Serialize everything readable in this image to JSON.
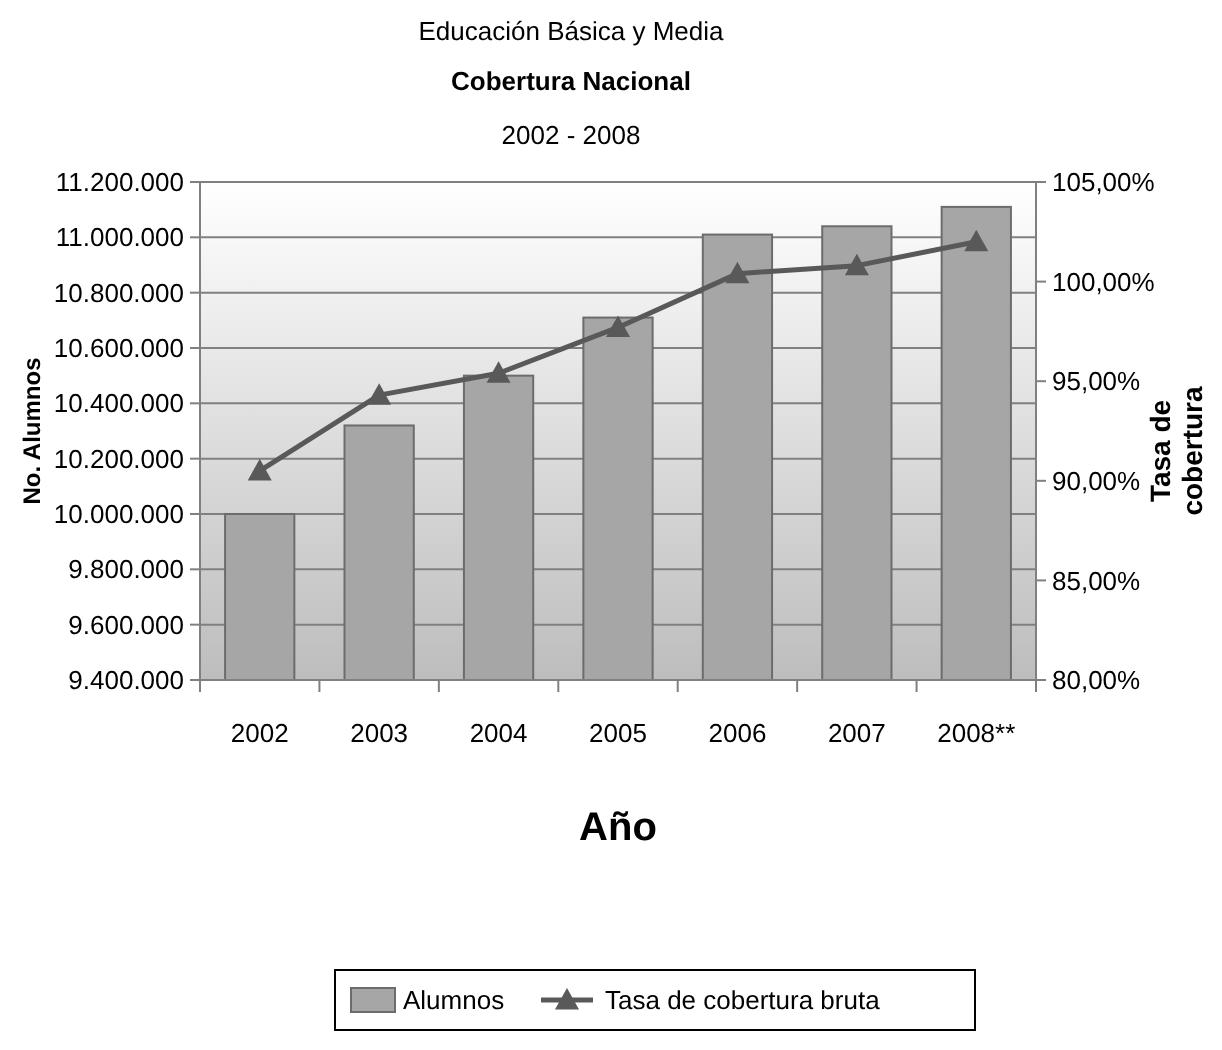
{
  "chart_data": {
    "type": "bar",
    "title": "Educación Básica y Media",
    "subtitle": "Cobertura Nacional",
    "annotations": [
      "2002 - 2008"
    ],
    "xlabel": "Año",
    "ylabel": "No. Alumnos",
    "y2label": "Tasa de cobertura",
    "categories": [
      "2002",
      "2003",
      "2004",
      "2005",
      "2006",
      "2007",
      "2008**"
    ],
    "series": [
      {
        "name": "Alumnos",
        "color": "#a6a6a6",
        "values": [
          10000000,
          10320000,
          10500000,
          10710000,
          11010000,
          11040000,
          11110000
        ]
      },
      {
        "name": "Tasa de cobertura bruta",
        "type": "line",
        "axis": "y2",
        "color": "#595959",
        "marker": "triangle",
        "values": [
          90.5,
          94.3,
          95.4,
          97.7,
          100.4,
          100.8,
          102.0
        ]
      }
    ],
    "ylim": [
      9400000,
      11200000
    ],
    "yticks": [
      {
        "value": 9400000,
        "label": "9.400.000"
      },
      {
        "value": 9600000,
        "label": "9.600.000"
      },
      {
        "value": 9800000,
        "label": "9.800.000"
      },
      {
        "value": 10000000,
        "label": "10.000.000"
      },
      {
        "value": 10200000,
        "label": "10.200.000"
      },
      {
        "value": 10400000,
        "label": "10.400.000"
      },
      {
        "value": 10600000,
        "label": "10.600.000"
      },
      {
        "value": 10800000,
        "label": "10.800.000"
      },
      {
        "value": 11000000,
        "label": "11.000.000"
      },
      {
        "value": 11200000,
        "label": "11.200.000"
      }
    ],
    "y2lim": [
      80,
      105
    ],
    "y2ticks": [
      {
        "value": 80,
        "label": "80,00%"
      },
      {
        "value": 85,
        "label": "85,00%"
      },
      {
        "value": 90,
        "label": "90,00%"
      },
      {
        "value": 95,
        "label": "95,00%"
      },
      {
        "value": 100,
        "label": "100,00%"
      },
      {
        "value": 105,
        "label": "105,00%"
      }
    ],
    "grid": "y",
    "legend": "bottom"
  }
}
